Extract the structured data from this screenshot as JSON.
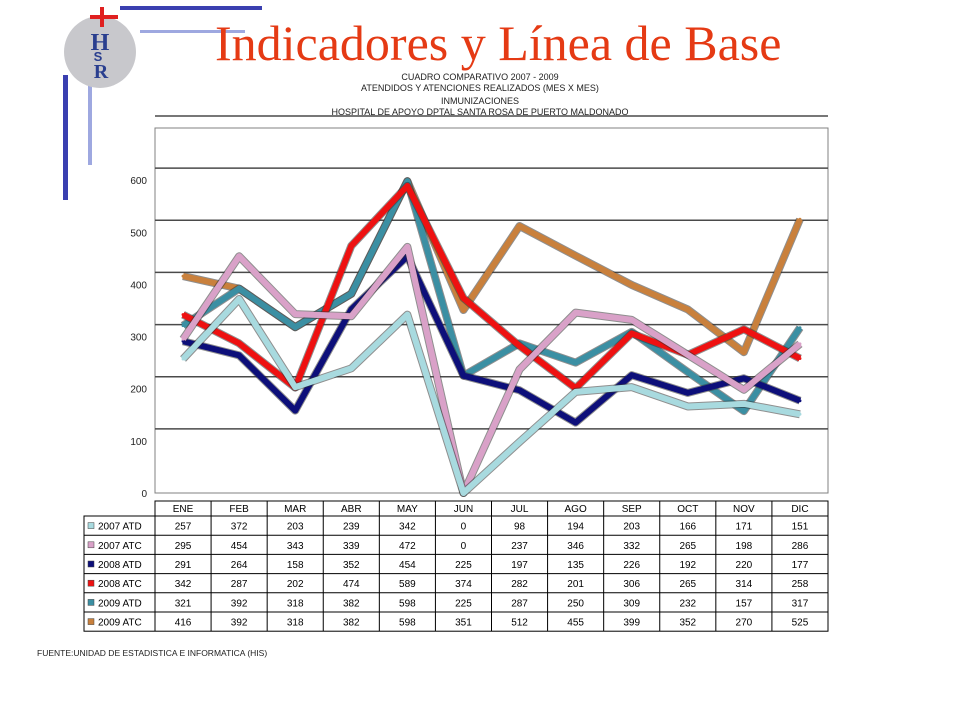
{
  "slide": {
    "title": "Indicadores y Línea de Base",
    "logo_letters": [
      "H",
      "S",
      "R"
    ],
    "source_note": "FUENTE:UNIDAD DE ESTADISTICA E INFORMATICA (HIS)"
  },
  "colors": {
    "title": "#e53a14",
    "logo_circle": "#c8c8cc",
    "logo_letters": "#2a3f8f",
    "logo_cross": "#e02020",
    "deco_dark_blue": "#3a3fb0",
    "deco_light_blue": "#9ea8e0"
  },
  "chart_data": {
    "type": "line",
    "title_lines": [
      "CUADRO COMPARATIVO 2007 - 2009",
      "ATENDIDOS Y ATENCIONES  REALIZADOS (MES X MES)",
      "INMUNIZACIONES",
      "HOSPITAL DE APOYO DPTAL SANTA ROSA DE PUERTO MALDONADO"
    ],
    "categories": [
      "ENE",
      "FEB",
      "MAR",
      "ABR",
      "MAY",
      "JUN",
      "JUL",
      "AGO",
      "SEP",
      "OCT",
      "NOV",
      "DIC"
    ],
    "y_ticks": [
      "0",
      "100",
      "200",
      "300",
      "400",
      "500",
      "600"
    ],
    "ylim": [
      0,
      700
    ],
    "grid": true,
    "legend": "data-table",
    "series": [
      {
        "name": "2007 ATD",
        "color": "#a8dadf",
        "values": [
          257,
          372,
          203,
          239,
          342,
          0,
          98,
          194,
          203,
          166,
          171,
          151
        ]
      },
      {
        "name": "2007 ATC",
        "color": "#d9a1c8",
        "values": [
          295,
          454,
          343,
          339,
          472,
          0,
          237,
          346,
          332,
          265,
          198,
          286
        ]
      },
      {
        "name": "2008 ATD",
        "color": "#0d0f7a",
        "values": [
          291,
          264,
          158,
          352,
          454,
          225,
          197,
          135,
          226,
          192,
          220,
          177
        ]
      },
      {
        "name": "2008 ATC",
        "color": "#ee1111",
        "values": [
          342,
          287,
          202,
          474,
          589,
          374,
          282,
          201,
          306,
          265,
          314,
          258
        ]
      },
      {
        "name": "2009 ATD",
        "color": "#3b8fa3",
        "values": [
          321,
          392,
          318,
          382,
          598,
          225,
          287,
          250,
          309,
          232,
          157,
          317
        ]
      },
      {
        "name": "2009 ATC",
        "color": "#c9803c",
        "values": [
          416,
          392,
          318,
          382,
          598,
          351,
          512,
          455,
          399,
          352,
          270,
          525
        ]
      }
    ]
  }
}
